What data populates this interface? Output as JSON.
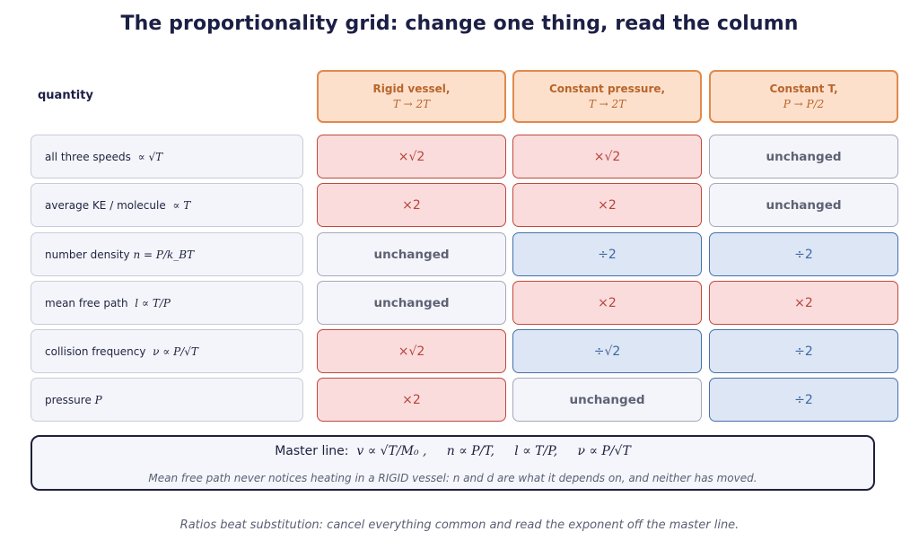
{
  "title": "The proportionality grid: change one thing, read the column",
  "quantity_header": "quantity",
  "columns": [
    {
      "line1": "Rigid vessel,",
      "line2": "T → 2T"
    },
    {
      "line1": "Constant pressure,",
      "line2": "T → 2T"
    },
    {
      "line1": "Constant T,",
      "line2": "P → P/2"
    }
  ],
  "rows": [
    {
      "label": "all three speeds",
      "math": "∝ √T",
      "cells": [
        {
          "text": "×√2",
          "kind": "up"
        },
        {
          "text": "×√2",
          "kind": "up"
        },
        {
          "text": "unchanged",
          "kind": "same"
        }
      ]
    },
    {
      "label": "average KE / molecule",
      "math": "∝ T",
      "cells": [
        {
          "text": "×2",
          "kind": "up"
        },
        {
          "text": "×2",
          "kind": "up"
        },
        {
          "text": "unchanged",
          "kind": "same"
        }
      ]
    },
    {
      "label": "number density",
      "math": "n = P/k_BT",
      "cells": [
        {
          "text": "unchanged",
          "kind": "same"
        },
        {
          "text": "÷2",
          "kind": "down"
        },
        {
          "text": "÷2",
          "kind": "down"
        }
      ]
    },
    {
      "label": "mean free path",
      "math": "l ∝ T/P",
      "cells": [
        {
          "text": "unchanged",
          "kind": "same"
        },
        {
          "text": "×2",
          "kind": "up"
        },
        {
          "text": "×2",
          "kind": "up"
        }
      ]
    },
    {
      "label": "collision frequency",
      "math": "ν ∝ P/√T",
      "cells": [
        {
          "text": "×√2",
          "kind": "up"
        },
        {
          "text": "÷√2",
          "kind": "down"
        },
        {
          "text": "÷2",
          "kind": "down"
        }
      ]
    },
    {
      "label": "pressure",
      "math": "P",
      "cells": [
        {
          "text": "×2",
          "kind": "up"
        },
        {
          "text": "unchanged",
          "kind": "same"
        },
        {
          "text": "÷2",
          "kind": "down"
        }
      ]
    }
  ],
  "master": {
    "label": "Master line:",
    "eq1": "v ∝ √T/M₀ ,",
    "eq2": "n ∝ P/T,",
    "eq3": "l ∝ T/P,",
    "eq4": "ν ∝ P/√T",
    "note": "Mean free path never notices heating in a RIGID vessel: n and d are what it depends on, and neither has moved."
  },
  "footer": "Ratios beat substitution: cancel everything common and read the exponent off the master line.",
  "colors": {
    "up": "#c0493c",
    "down": "#4670aa",
    "same": "#a4a8ba",
    "header": "#e08a4c"
  }
}
